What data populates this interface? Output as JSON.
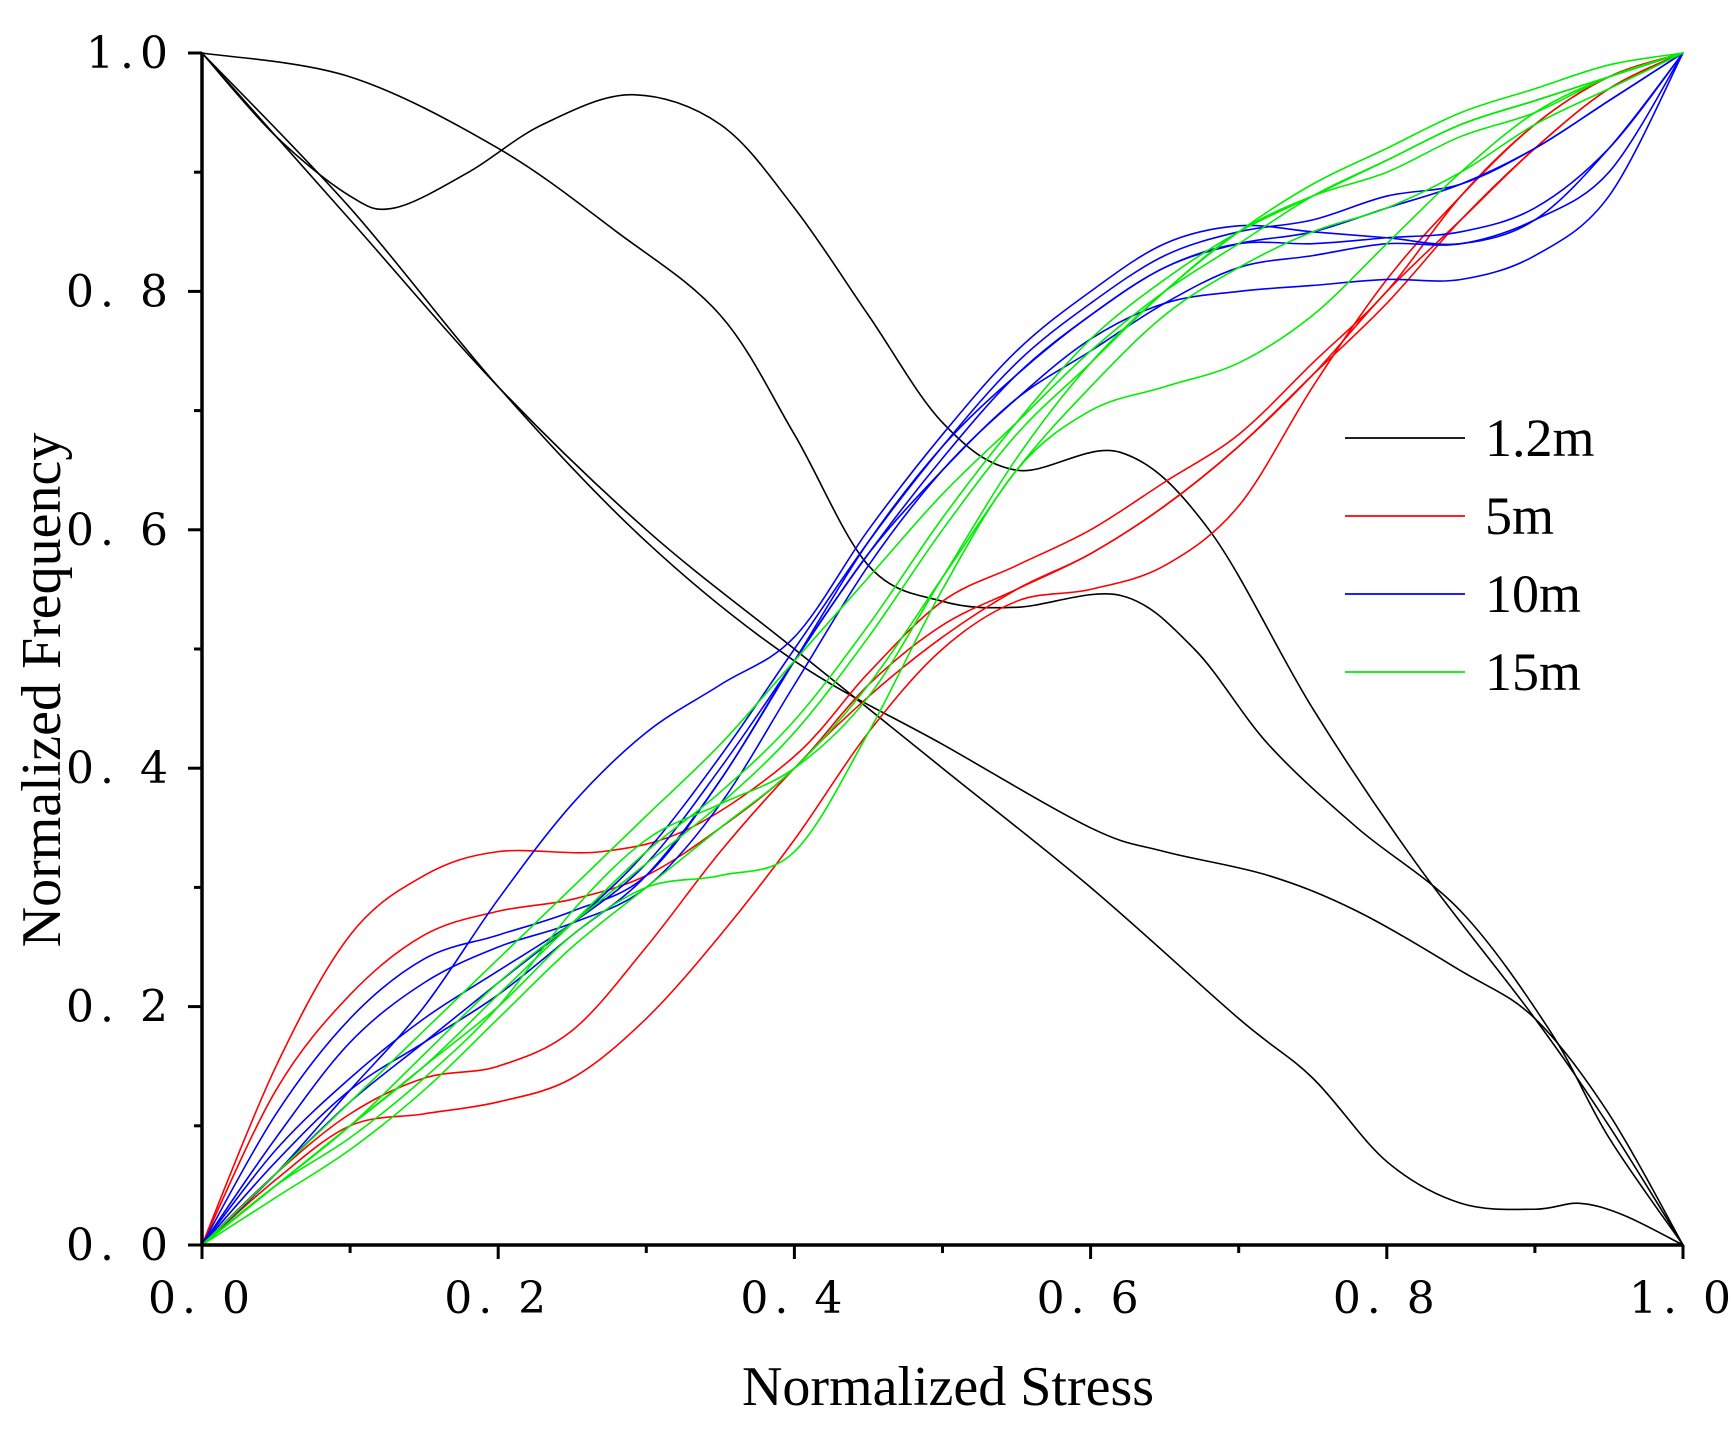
{
  "chart_data": {
    "type": "line",
    "title": "",
    "xlabel": "Normalized Stress",
    "ylabel": "Normalized Frequency",
    "xlim": [
      0,
      1
    ],
    "ylim": [
      0,
      1
    ],
    "x_ticks": [
      0,
      0.2,
      0.4,
      0.6,
      0.8,
      1.0
    ],
    "x_tick_labels": [
      "0. 0",
      "0. 2",
      "0. 4",
      "0. 6",
      "0. 8",
      "1. 0"
    ],
    "y_ticks": [
      0,
      0.2,
      0.4,
      0.6,
      0.8,
      1.0
    ],
    "y_tick_labels": [
      "0. 0",
      "0. 2",
      "0. 4",
      "0. 6",
      "0. 8",
      "1.0"
    ],
    "grid": false,
    "legend_position": "right",
    "legend": [
      {
        "label": "1.2m",
        "color": "#000000"
      },
      {
        "label": "5m",
        "color": "#ff0000"
      },
      {
        "label": "10m",
        "color": "#0000ff"
      },
      {
        "label": "15m",
        "color": "#00ee00"
      }
    ],
    "series": [
      {
        "group": "1.2m",
        "color": "#000000",
        "x": [
          0,
          0.05,
          0.1,
          0.13,
          0.18,
          0.23,
          0.29,
          0.35,
          0.4,
          0.45,
          0.5,
          0.55,
          0.62,
          0.68,
          0.75,
          0.82,
          0.9,
          0.95,
          1.0
        ],
        "y": [
          1.0,
          0.93,
          0.88,
          0.87,
          0.9,
          0.94,
          0.965,
          0.94,
          0.87,
          0.78,
          0.69,
          0.65,
          0.665,
          0.6,
          0.45,
          0.32,
          0.19,
          0.1,
          0.0
        ]
      },
      {
        "group": "1.2m",
        "color": "#000000",
        "x": [
          0,
          0.1,
          0.2,
          0.28,
          0.35,
          0.4,
          0.45,
          0.5,
          0.55,
          0.62,
          0.67,
          0.72,
          0.78,
          0.85,
          0.91,
          0.95,
          1.0
        ],
        "y": [
          1.0,
          0.98,
          0.92,
          0.85,
          0.78,
          0.68,
          0.57,
          0.54,
          0.535,
          0.545,
          0.5,
          0.42,
          0.35,
          0.28,
          0.18,
          0.09,
          0.0
        ]
      },
      {
        "group": "1.2m",
        "color": "#000000",
        "x": [
          0,
          0.1,
          0.2,
          0.3,
          0.4,
          0.5,
          0.6,
          0.65,
          0.72,
          0.78,
          0.85,
          0.9,
          0.95,
          1.0
        ],
        "y": [
          1.0,
          0.87,
          0.72,
          0.59,
          0.49,
          0.42,
          0.35,
          0.33,
          0.31,
          0.28,
          0.23,
          0.19,
          0.11,
          0.0
        ]
      },
      {
        "group": "1.2m",
        "color": "#000000",
        "x": [
          0,
          0.1,
          0.2,
          0.3,
          0.4,
          0.5,
          0.6,
          0.7,
          0.75,
          0.8,
          0.85,
          0.9,
          0.93,
          0.96,
          1.0
        ],
        "y": [
          1.0,
          0.86,
          0.72,
          0.6,
          0.5,
          0.4,
          0.3,
          0.19,
          0.14,
          0.07,
          0.035,
          0.03,
          0.035,
          0.025,
          0.0
        ]
      },
      {
        "group": "5m",
        "color": "#ff0000",
        "x": [
          0,
          0.05,
          0.1,
          0.15,
          0.2,
          0.27,
          0.33,
          0.4,
          0.45,
          0.5,
          0.55,
          0.6,
          0.65,
          0.7,
          0.75,
          0.8,
          0.85,
          0.9,
          0.95,
          1.0
        ],
        "y": [
          0,
          0.15,
          0.26,
          0.31,
          0.33,
          0.33,
          0.35,
          0.41,
          0.48,
          0.54,
          0.57,
          0.6,
          0.64,
          0.68,
          0.74,
          0.8,
          0.88,
          0.94,
          0.98,
          1.0
        ]
      },
      {
        "group": "5m",
        "color": "#ff0000",
        "x": [
          0,
          0.05,
          0.1,
          0.15,
          0.2,
          0.25,
          0.3,
          0.35,
          0.4,
          0.45,
          0.5,
          0.55,
          0.6,
          0.65,
          0.7,
          0.75,
          0.8,
          0.85,
          0.9,
          0.95,
          1.0
        ],
        "y": [
          0,
          0.13,
          0.21,
          0.26,
          0.28,
          0.29,
          0.31,
          0.35,
          0.4,
          0.47,
          0.52,
          0.55,
          0.58,
          0.62,
          0.67,
          0.73,
          0.79,
          0.86,
          0.92,
          0.97,
          1.0
        ]
      },
      {
        "group": "5m",
        "color": "#ff0000",
        "x": [
          0,
          0.05,
          0.1,
          0.15,
          0.2,
          0.25,
          0.3,
          0.35,
          0.4,
          0.45,
          0.5,
          0.55,
          0.6,
          0.65,
          0.7,
          0.75,
          0.8,
          0.85,
          0.9,
          0.95,
          1.0
        ],
        "y": [
          0,
          0.06,
          0.11,
          0.14,
          0.15,
          0.18,
          0.25,
          0.33,
          0.4,
          0.46,
          0.51,
          0.55,
          0.58,
          0.62,
          0.67,
          0.73,
          0.8,
          0.86,
          0.92,
          0.97,
          1.0
        ]
      },
      {
        "group": "5m",
        "color": "#ff0000",
        "x": [
          0,
          0.05,
          0.1,
          0.15,
          0.2,
          0.25,
          0.3,
          0.35,
          0.4,
          0.45,
          0.5,
          0.55,
          0.6,
          0.65,
          0.7,
          0.75,
          0.8,
          0.85,
          0.9,
          0.95,
          1.0
        ],
        "y": [
          0,
          0.055,
          0.1,
          0.11,
          0.12,
          0.14,
          0.19,
          0.26,
          0.34,
          0.43,
          0.5,
          0.54,
          0.55,
          0.57,
          0.62,
          0.72,
          0.81,
          0.88,
          0.94,
          0.98,
          1.0
        ]
      },
      {
        "group": "10m",
        "color": "#0000ff",
        "x": [
          0,
          0.05,
          0.1,
          0.15,
          0.2,
          0.25,
          0.3,
          0.35,
          0.4,
          0.45,
          0.5,
          0.55,
          0.6,
          0.65,
          0.7,
          0.75,
          0.8,
          0.85,
          0.9,
          0.95,
          1.0
        ],
        "y": [
          0,
          0.06,
          0.13,
          0.2,
          0.29,
          0.37,
          0.43,
          0.47,
          0.51,
          0.6,
          0.68,
          0.75,
          0.8,
          0.84,
          0.855,
          0.85,
          0.845,
          0.84,
          0.86,
          0.92,
          1.0
        ]
      },
      {
        "group": "10m",
        "color": "#0000ff",
        "x": [
          0,
          0.05,
          0.1,
          0.15,
          0.2,
          0.25,
          0.3,
          0.35,
          0.4,
          0.45,
          0.5,
          0.55,
          0.6,
          0.65,
          0.7,
          0.75,
          0.8,
          0.85,
          0.9,
          0.95,
          1.0
        ],
        "y": [
          0,
          0.11,
          0.19,
          0.24,
          0.26,
          0.28,
          0.31,
          0.39,
          0.49,
          0.59,
          0.67,
          0.73,
          0.78,
          0.82,
          0.84,
          0.84,
          0.845,
          0.85,
          0.87,
          0.92,
          1.0
        ]
      },
      {
        "group": "10m",
        "color": "#0000ff",
        "x": [
          0,
          0.05,
          0.1,
          0.15,
          0.2,
          0.25,
          0.3,
          0.35,
          0.4,
          0.45,
          0.5,
          0.55,
          0.6,
          0.65,
          0.7,
          0.75,
          0.8,
          0.85,
          0.9,
          0.95,
          1.0
        ],
        "y": [
          0,
          0.09,
          0.17,
          0.22,
          0.25,
          0.27,
          0.3,
          0.37,
          0.47,
          0.57,
          0.65,
          0.71,
          0.76,
          0.79,
          0.8,
          0.805,
          0.81,
          0.81,
          0.83,
          0.88,
          1.0
        ]
      },
      {
        "group": "10m",
        "color": "#0000ff",
        "x": [
          0,
          0.05,
          0.1,
          0.15,
          0.2,
          0.25,
          0.3,
          0.35,
          0.4,
          0.45,
          0.5,
          0.55,
          0.6,
          0.65,
          0.7,
          0.75,
          0.8,
          0.85,
          0.9,
          0.95,
          1.0
        ],
        "y": [
          0,
          0.07,
          0.13,
          0.17,
          0.21,
          0.26,
          0.31,
          0.39,
          0.49,
          0.58,
          0.66,
          0.73,
          0.78,
          0.82,
          0.84,
          0.85,
          0.87,
          0.89,
          0.92,
          0.96,
          1.0
        ]
      },
      {
        "group": "10m",
        "color": "#0000ff",
        "x": [
          0,
          0.05,
          0.1,
          0.15,
          0.2,
          0.25,
          0.3,
          0.35,
          0.4,
          0.45,
          0.5,
          0.55,
          0.6,
          0.65,
          0.7,
          0.75,
          0.8,
          0.85,
          0.9,
          0.95,
          1.0
        ],
        "y": [
          0,
          0.06,
          0.12,
          0.17,
          0.22,
          0.27,
          0.33,
          0.41,
          0.5,
          0.59,
          0.67,
          0.74,
          0.79,
          0.83,
          0.85,
          0.86,
          0.88,
          0.89,
          0.92,
          0.96,
          1.0
        ]
      },
      {
        "group": "10m",
        "color": "#0000ff",
        "x": [
          0,
          0.05,
          0.1,
          0.15,
          0.2,
          0.25,
          0.3,
          0.35,
          0.4,
          0.45,
          0.5,
          0.55,
          0.6,
          0.65,
          0.7,
          0.75,
          0.8,
          0.85,
          0.9,
          0.95,
          1.0
        ],
        "y": [
          0,
          0.08,
          0.14,
          0.19,
          0.23,
          0.27,
          0.32,
          0.4,
          0.49,
          0.58,
          0.65,
          0.71,
          0.75,
          0.79,
          0.82,
          0.83,
          0.84,
          0.84,
          0.86,
          0.9,
          1.0
        ]
      },
      {
        "group": "15m",
        "color": "#00ee00",
        "x": [
          0,
          0.05,
          0.1,
          0.15,
          0.2,
          0.25,
          0.3,
          0.35,
          0.4,
          0.45,
          0.5,
          0.55,
          0.6,
          0.65,
          0.7,
          0.75,
          0.8,
          0.85,
          0.9,
          0.95,
          1.0
        ],
        "y": [
          0,
          0.05,
          0.1,
          0.15,
          0.2,
          0.26,
          0.3,
          0.31,
          0.33,
          0.43,
          0.55,
          0.65,
          0.7,
          0.72,
          0.74,
          0.78,
          0.84,
          0.9,
          0.95,
          0.98,
          1.0
        ]
      },
      {
        "group": "15m",
        "color": "#00ee00",
        "x": [
          0,
          0.05,
          0.1,
          0.15,
          0.2,
          0.25,
          0.3,
          0.35,
          0.4,
          0.45,
          0.5,
          0.55,
          0.6,
          0.65,
          0.7,
          0.75,
          0.8,
          0.85,
          0.9,
          0.95,
          1.0
        ],
        "y": [
          0,
          0.05,
          0.09,
          0.14,
          0.2,
          0.28,
          0.34,
          0.37,
          0.4,
          0.46,
          0.56,
          0.66,
          0.74,
          0.8,
          0.85,
          0.89,
          0.92,
          0.95,
          0.97,
          0.99,
          1.0
        ]
      },
      {
        "group": "15m",
        "color": "#00ee00",
        "x": [
          0,
          0.05,
          0.1,
          0.15,
          0.2,
          0.25,
          0.3,
          0.35,
          0.4,
          0.45,
          0.5,
          0.55,
          0.6,
          0.65,
          0.7,
          0.75,
          0.8,
          0.85,
          0.9,
          0.95,
          1.0
        ],
        "y": [
          0,
          0.06,
          0.12,
          0.18,
          0.24,
          0.3,
          0.36,
          0.42,
          0.49,
          0.56,
          0.63,
          0.69,
          0.75,
          0.8,
          0.84,
          0.88,
          0.91,
          0.94,
          0.96,
          0.98,
          1.0
        ]
      },
      {
        "group": "15m",
        "color": "#00ee00",
        "x": [
          0,
          0.05,
          0.1,
          0.15,
          0.2,
          0.25,
          0.3,
          0.35,
          0.4,
          0.45,
          0.5,
          0.55,
          0.6,
          0.65,
          0.7,
          0.75,
          0.8,
          0.85,
          0.9,
          0.95,
          1.0
        ],
        "y": [
          0,
          0.05,
          0.1,
          0.16,
          0.22,
          0.27,
          0.32,
          0.37,
          0.43,
          0.51,
          0.6,
          0.68,
          0.74,
          0.8,
          0.85,
          0.88,
          0.9,
          0.93,
          0.95,
          0.98,
          1.0
        ]
      },
      {
        "group": "15m",
        "color": "#00ee00",
        "x": [
          0,
          0.05,
          0.1,
          0.15,
          0.2,
          0.25,
          0.3,
          0.35,
          0.4,
          0.45,
          0.5,
          0.55,
          0.6,
          0.65,
          0.7,
          0.75,
          0.8,
          0.85,
          0.9,
          0.95,
          1.0
        ],
        "y": [
          0,
          0.04,
          0.08,
          0.13,
          0.19,
          0.25,
          0.3,
          0.35,
          0.4,
          0.47,
          0.56,
          0.65,
          0.72,
          0.78,
          0.82,
          0.85,
          0.87,
          0.9,
          0.94,
          0.97,
          1.0
        ]
      },
      {
        "group": "15m",
        "color": "#00ee00",
        "x": [
          0,
          0.05,
          0.1,
          0.15,
          0.2,
          0.25,
          0.3,
          0.35,
          0.4,
          0.45,
          0.5,
          0.55,
          0.6,
          0.65,
          0.7,
          0.75,
          0.8,
          0.85,
          0.9,
          0.95,
          1.0
        ],
        "y": [
          0,
          0.05,
          0.1,
          0.15,
          0.21,
          0.27,
          0.33,
          0.38,
          0.44,
          0.52,
          0.61,
          0.69,
          0.76,
          0.81,
          0.85,
          0.88,
          0.91,
          0.94,
          0.96,
          0.98,
          1.0
        ]
      }
    ]
  }
}
